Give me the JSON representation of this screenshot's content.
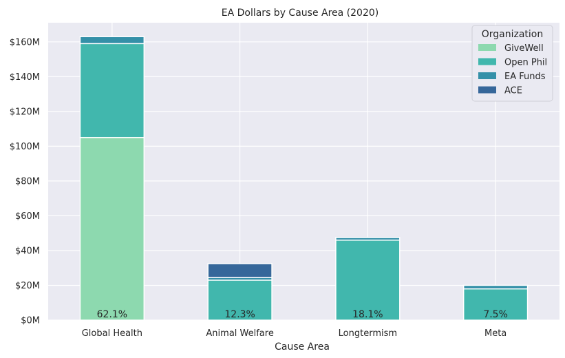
{
  "chart_data": {
    "type": "bar",
    "stacked": true,
    "title": "EA Dollars by Cause Area (2020)",
    "xlabel": "Cause Area",
    "ylabel": "",
    "ylim": [
      0,
      171000000
    ],
    "yticks": [
      0,
      20000000,
      40000000,
      60000000,
      80000000,
      100000000,
      120000000,
      140000000,
      160000000
    ],
    "ytick_labels": [
      "$0M",
      "$20M",
      "$40M",
      "$60M",
      "$80M",
      "$100M",
      "$120M",
      "$140M",
      "$160M"
    ],
    "grid": true,
    "categories": [
      "Global Health",
      "Animal Welfare",
      "Longtermism",
      "Meta"
    ],
    "series": [
      {
        "name": "GiveWell",
        "color": "#8dd9af",
        "values": [
          105000000,
          0,
          0,
          0
        ]
      },
      {
        "name": "Open Phil",
        "color": "#41b7ad",
        "values": [
          54000000,
          23000000,
          46000000,
          18000000
        ]
      },
      {
        "name": "EA Funds",
        "color": "#3490a8",
        "values": [
          4000000,
          1500000,
          1500000,
          2000000
        ]
      },
      {
        "name": "ACE",
        "color": "#36679a",
        "values": [
          0,
          8000000,
          0,
          0
        ]
      }
    ],
    "bar_labels": [
      "62.1%",
      "12.3%",
      "18.1%",
      "7.5%"
    ],
    "legend": {
      "title": "Organization",
      "placement": "top-right"
    }
  }
}
